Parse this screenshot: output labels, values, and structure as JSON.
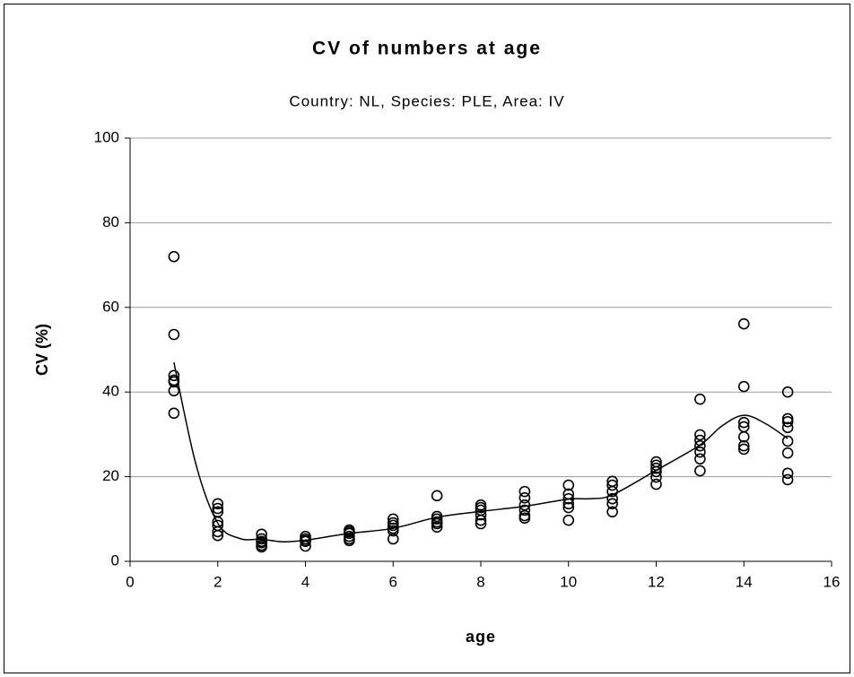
{
  "chart_data": {
    "type": "scatter",
    "title": "CV of numbers at age",
    "subtitle": "Country: NL, Species: PLE, Area: IV",
    "x_label": "age",
    "y_label": "CV (%)",
    "xlim": [
      0,
      16
    ],
    "ylim": [
      0,
      100
    ],
    "xticks": [
      0,
      2,
      4,
      6,
      8,
      10,
      12,
      14,
      16
    ],
    "yticks": [
      0,
      20,
      40,
      60,
      80,
      100
    ],
    "grid": true,
    "series": [
      {
        "style": "markers",
        "color": "#000000",
        "x": [
          1,
          1,
          1,
          1,
          1,
          1,
          1,
          2,
          2,
          2,
          2,
          2,
          2,
          2,
          3,
          3,
          3,
          3,
          3,
          3,
          4,
          4,
          4,
          4,
          4,
          5,
          5,
          5,
          5,
          5,
          5,
          6,
          6,
          6,
          6,
          6,
          6,
          7,
          7,
          7,
          7,
          7,
          7,
          8,
          8,
          8,
          8,
          8,
          8,
          9,
          9,
          9,
          9,
          9,
          9,
          10,
          10,
          10,
          10,
          10,
          10,
          11,
          11,
          11,
          11,
          11,
          11,
          12,
          12,
          12,
          12,
          12,
          12,
          13,
          13,
          13,
          13,
          13,
          13,
          13,
          14,
          14,
          14,
          14,
          14,
          14,
          14,
          15,
          15,
          15,
          15,
          15,
          15,
          15,
          15
        ],
        "values": [
          72,
          53.6,
          43.9,
          42.8,
          42.4,
          40.3,
          35,
          13.6,
          12.5,
          11.7,
          9.3,
          8.5,
          7,
          6.1,
          6.4,
          5.3,
          4.4,
          3.8,
          3.4,
          4.7,
          5.9,
          5.3,
          4.7,
          3.6,
          4.9,
          7.4,
          6.6,
          5.9,
          5.3,
          4.9,
          7,
          10,
          9.1,
          7.8,
          7.2,
          5.3,
          8.5,
          15.5,
          10.6,
          10,
          8.9,
          8.1,
          9.3,
          13.3,
          12.7,
          11,
          9.7,
          8.9,
          12.1,
          16.5,
          15,
          13.3,
          12.1,
          10.8,
          10.2,
          18,
          15.9,
          14.8,
          13.6,
          12.7,
          9.7,
          18.9,
          18,
          16.5,
          14.8,
          13.6,
          11.7,
          23.5,
          22.7,
          21.2,
          19.9,
          18.2,
          22,
          38.3,
          29.9,
          28.6,
          27.3,
          25.8,
          24.2,
          21.4,
          56.1,
          41.3,
          32.8,
          31.8,
          29.4,
          27.3,
          26.5,
          40,
          33.7,
          33,
          31.6,
          28.4,
          25.6,
          20.8,
          19.3
        ]
      },
      {
        "style": "line",
        "color": "#000000",
        "x": [
          1,
          1.5,
          2,
          2.5,
          3,
          3.5,
          4,
          5,
          6,
          7,
          8,
          9,
          10,
          10.5,
          11,
          12,
          13,
          13.5,
          14,
          14.5,
          15
        ],
        "values": [
          47,
          23,
          9,
          5.4,
          5.2,
          4.6,
          5,
          6.6,
          7.8,
          10.4,
          11.8,
          13,
          14.7,
          14.8,
          15.7,
          21.5,
          27.5,
          32,
          34.5,
          32.5,
          29
        ]
      }
    ]
  }
}
